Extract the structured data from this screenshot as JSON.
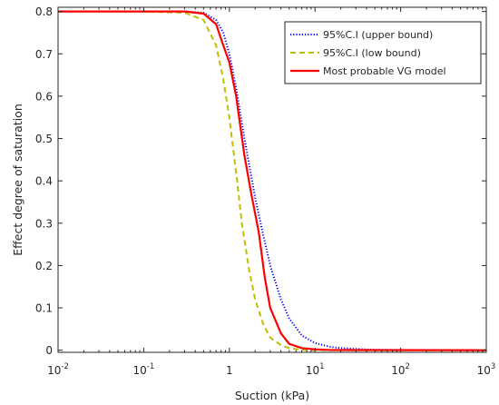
{
  "chart_data": {
    "type": "line",
    "title": "",
    "xlabel": "Suction (kPa)",
    "ylabel": "Effect degree of saturation",
    "xscale": "log",
    "xlim": [
      0.01,
      1000
    ],
    "ylim": [
      -0.005,
      0.81
    ],
    "x_ticks": [
      0.01,
      0.1,
      1,
      10,
      100,
      1000
    ],
    "x_tick_labels": [
      {
        "base": "10",
        "exp": "-2"
      },
      {
        "base": "10",
        "exp": "-1"
      },
      {
        "base": "1",
        "exp": ""
      },
      {
        "base": "10",
        "exp": "1"
      },
      {
        "base": "10",
        "exp": "2"
      },
      {
        "base": "10",
        "exp": "3"
      }
    ],
    "y_ticks": [
      0,
      0.1,
      0.2,
      0.3,
      0.4,
      0.5,
      0.6,
      0.7,
      0.8
    ],
    "y_tick_labels": [
      "0",
      "0.1",
      "0.2",
      "0.3",
      "0.4",
      "0.5",
      "0.6",
      "0.7",
      "0.8"
    ],
    "grid": false,
    "legend_position": "top-right",
    "series": [
      {
        "name": "95%C.I (upper bound)",
        "color": "#0000ff",
        "style": "dotted",
        "x": [
          0.01,
          0.1,
          0.3,
          0.5,
          0.7,
          0.85,
          1.0,
          1.2,
          1.5,
          2.0,
          2.5,
          3.0,
          4.0,
          5.0,
          7.0,
          10,
          15,
          20,
          30,
          50,
          100,
          1000
        ],
        "y": [
          0.8,
          0.8,
          0.8,
          0.797,
          0.78,
          0.75,
          0.7,
          0.62,
          0.5,
          0.36,
          0.27,
          0.2,
          0.12,
          0.075,
          0.035,
          0.017,
          0.008,
          0.005,
          0.003,
          0.001,
          0.0005,
          0.0
        ]
      },
      {
        "name": "95%C.I (low bound)",
        "color": "#bfbf00",
        "style": "dashed",
        "x": [
          0.01,
          0.1,
          0.3,
          0.5,
          0.7,
          0.85,
          1.0,
          1.2,
          1.4,
          1.7,
          2.0,
          2.5,
          3.0,
          4.0,
          5.0,
          7.0,
          10,
          1000
        ],
        "y": [
          0.8,
          0.8,
          0.797,
          0.78,
          0.72,
          0.64,
          0.55,
          0.42,
          0.3,
          0.19,
          0.12,
          0.06,
          0.03,
          0.012,
          0.005,
          0.001,
          0.0,
          0.0
        ]
      },
      {
        "name": "Most probable VG model",
        "color": "#ff0000",
        "style": "solid",
        "x": [
          0.01,
          0.1,
          0.3,
          0.5,
          0.7,
          0.85,
          1.0,
          1.2,
          1.5,
          1.8,
          2.2,
          2.6,
          3.0,
          4.0,
          5.0,
          7.0,
          10,
          15,
          1000
        ],
        "y": [
          0.8,
          0.8,
          0.8,
          0.795,
          0.77,
          0.72,
          0.68,
          0.6,
          0.46,
          0.37,
          0.28,
          0.17,
          0.1,
          0.04,
          0.015,
          0.005,
          0.002,
          0.0005,
          0.0
        ]
      }
    ]
  }
}
